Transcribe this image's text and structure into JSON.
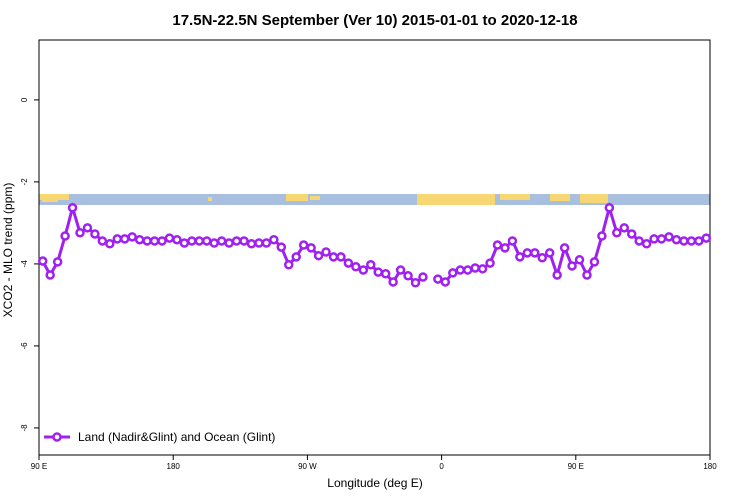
{
  "chart_data": {
    "type": "line",
    "title": "17.5N-22.5N September (Ver 10)   2015-01-01 to 2020-12-18",
    "x_label": "Longitude (deg E)",
    "y_label": "XCO2 - MLO trend (ppm)",
    "x": [
      92.5,
      97.5,
      102.5,
      107.5,
      112.5,
      117.5,
      122.5,
      127.5,
      132.5,
      137.5,
      142.5,
      147.5,
      152.5,
      157.5,
      162.5,
      167.5,
      172.5,
      177.5,
      182.5,
      187.5,
      192.5,
      197.5,
      202.5,
      207.5,
      212.5,
      217.5,
      222.5,
      227.5,
      232.5,
      237.5,
      242.5,
      247.5,
      252.5,
      257.5,
      262.5,
      267.5,
      272.5,
      277.5,
      282.5,
      287.5,
      292.5,
      297.5,
      302.5,
      307.5,
      312.5,
      317.5,
      322.5,
      327.5,
      332.5,
      337.5,
      342.5,
      347.5,
      352.5,
      357.5,
      362.5,
      367.5,
      372.5,
      377.5,
      382.5,
      387.5,
      392.5,
      397.5,
      402.5,
      407.5,
      412.5,
      417.5,
      422.5,
      427.5,
      432.5,
      437.5,
      442.5,
      447.5,
      452.5,
      457.5,
      462.5,
      467.5,
      472.5,
      477.5,
      482.5,
      487.5,
      492.5,
      497.5,
      502.5,
      507.5,
      512.5,
      517.5,
      522.5,
      527.5,
      532.5,
      537.5
    ],
    "series": [
      {
        "name": "Land (Nadir&Glint) and Ocean (Glint)",
        "color": "#a020f0",
        "values": [
          -3.93,
          -4.27,
          -3.95,
          -3.32,
          -2.63,
          -3.24,
          -3.12,
          -3.27,
          -3.44,
          -3.51,
          -3.39,
          -3.39,
          -3.34,
          -3.41,
          -3.44,
          -3.44,
          -3.44,
          -3.37,
          -3.41,
          -3.49,
          -3.44,
          -3.44,
          -3.44,
          -3.49,
          -3.44,
          -3.49,
          -3.44,
          -3.44,
          -3.51,
          -3.49,
          -3.49,
          -3.41,
          -3.59,
          -4.02,
          -3.83,
          -3.54,
          -3.61,
          -3.8,
          -3.71,
          -3.83,
          -3.83,
          -3.98,
          -4.07,
          -4.15,
          -4.02,
          -4.2,
          -4.24,
          -4.44,
          -4.15,
          -4.29,
          -4.46,
          -4.32,
          null,
          -4.37,
          -4.44,
          -4.22,
          -4.15,
          -4.15,
          -4.1,
          -4.12,
          -3.98,
          -3.54,
          -3.61,
          -3.44,
          -3.83,
          -3.73,
          -3.73,
          -3.85,
          -3.73,
          -4.27,
          -3.61,
          -4.05,
          -3.9,
          -4.27,
          -3.95,
          -3.32,
          -2.63,
          -3.24,
          -3.12,
          -3.27,
          -3.44,
          -3.51,
          -3.39,
          -3.39,
          -3.34,
          -3.41,
          -3.44,
          -3.44,
          -3.44,
          -3.37
        ]
      }
    ],
    "xlim": [
      90,
      540
    ],
    "xticks": [
      {
        "value": 90,
        "label": "90 E"
      },
      180,
      {
        "value": 270,
        "label": "90 W"
      },
      {
        "value": 360,
        "label": "0"
      },
      {
        "value": 450,
        "label": "90 E"
      },
      {
        "value": 540,
        "label": "180"
      }
    ],
    "ylim": [
      -8.66,
      1.46
    ],
    "yticks": [
      0,
      -2,
      -4,
      -6,
      -8
    ],
    "legend": "bottom-left"
  }
}
